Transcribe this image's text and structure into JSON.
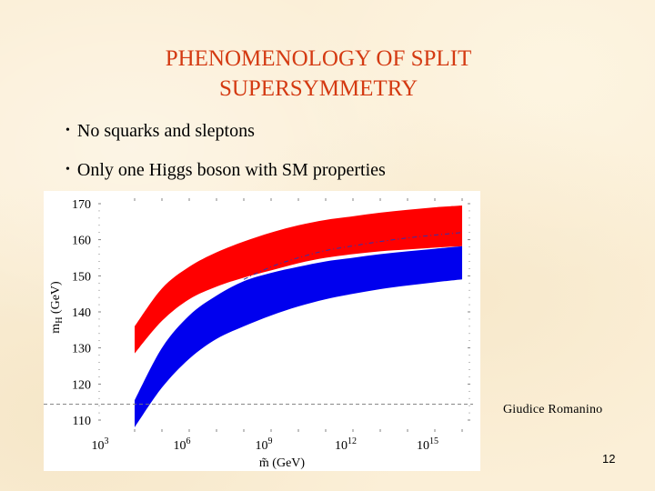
{
  "slide": {
    "title_line1": "PHENOMENOLOGY OF SPLIT",
    "title_line2": "SUPERSYMMETRY",
    "bullets": [
      {
        "symbol": "•",
        "text": "No squarks and sleptons"
      },
      {
        "symbol": "•",
        "text": "Only one Higgs boson with SM properties"
      }
    ],
    "credit": "Giudice Romanino",
    "page_number": "12",
    "colors": {
      "title": "#d43a12",
      "background": "#fbefd7",
      "red_band": "#ff0000",
      "blue_band": "#0000ee"
    }
  },
  "chart_data": {
    "type": "area",
    "title": "",
    "xlabel": "m̃ (GeV)",
    "ylabel": "mH (GeV)",
    "x_scale": "log10",
    "xlim_exponent": [
      3,
      16.5
    ],
    "ylim": [
      108,
      172
    ],
    "x_tick_labels": [
      "10^3",
      "10^6",
      "10^9",
      "10^12",
      "10^15"
    ],
    "x_tick_exponents": [
      3,
      6,
      9,
      12,
      15
    ],
    "y_tick_labels": [
      "110",
      "120",
      "130",
      "140",
      "150",
      "160",
      "170"
    ],
    "y_ticks": [
      110,
      120,
      130,
      140,
      150,
      160,
      170
    ],
    "grid": false,
    "reference_line": {
      "style": "dashed",
      "y": 114.4,
      "color": "#777777"
    },
    "x_exponent": [
      4,
      5,
      6,
      7,
      8,
      9,
      10,
      11,
      12,
      13,
      14,
      15,
      16
    ],
    "series": [
      {
        "name": "red band (upper)",
        "color": "#ff0000",
        "upper": [
          136.0,
          146.5,
          152.5,
          156.5,
          159.5,
          162.0,
          164.0,
          165.5,
          166.5,
          167.5,
          168.3,
          169.0,
          169.5
        ],
        "lower": [
          128.5,
          137.5,
          143.5,
          147.0,
          149.5,
          151.5,
          153.5,
          155.0,
          156.0,
          156.8,
          157.3,
          157.8,
          158.2
        ]
      },
      {
        "name": "blue band (lower)",
        "color": "#0000ee",
        "upper": [
          115.5,
          130.0,
          139.0,
          144.5,
          148.5,
          150.8,
          152.5,
          154.0,
          155.0,
          156.0,
          156.8,
          157.5,
          158.2
        ],
        "lower": [
          108.0,
          119.0,
          127.0,
          132.5,
          136.0,
          139.0,
          141.5,
          143.5,
          145.0,
          146.3,
          147.3,
          148.2,
          149.0
        ]
      },
      {
        "name": "central line",
        "color": "#3333aa",
        "style": "dash-dot",
        "values": [
          null,
          null,
          null,
          null,
          149.0,
          152.5,
          155.0,
          157.0,
          158.3,
          159.5,
          160.5,
          161.3,
          162.0
        ]
      }
    ]
  }
}
